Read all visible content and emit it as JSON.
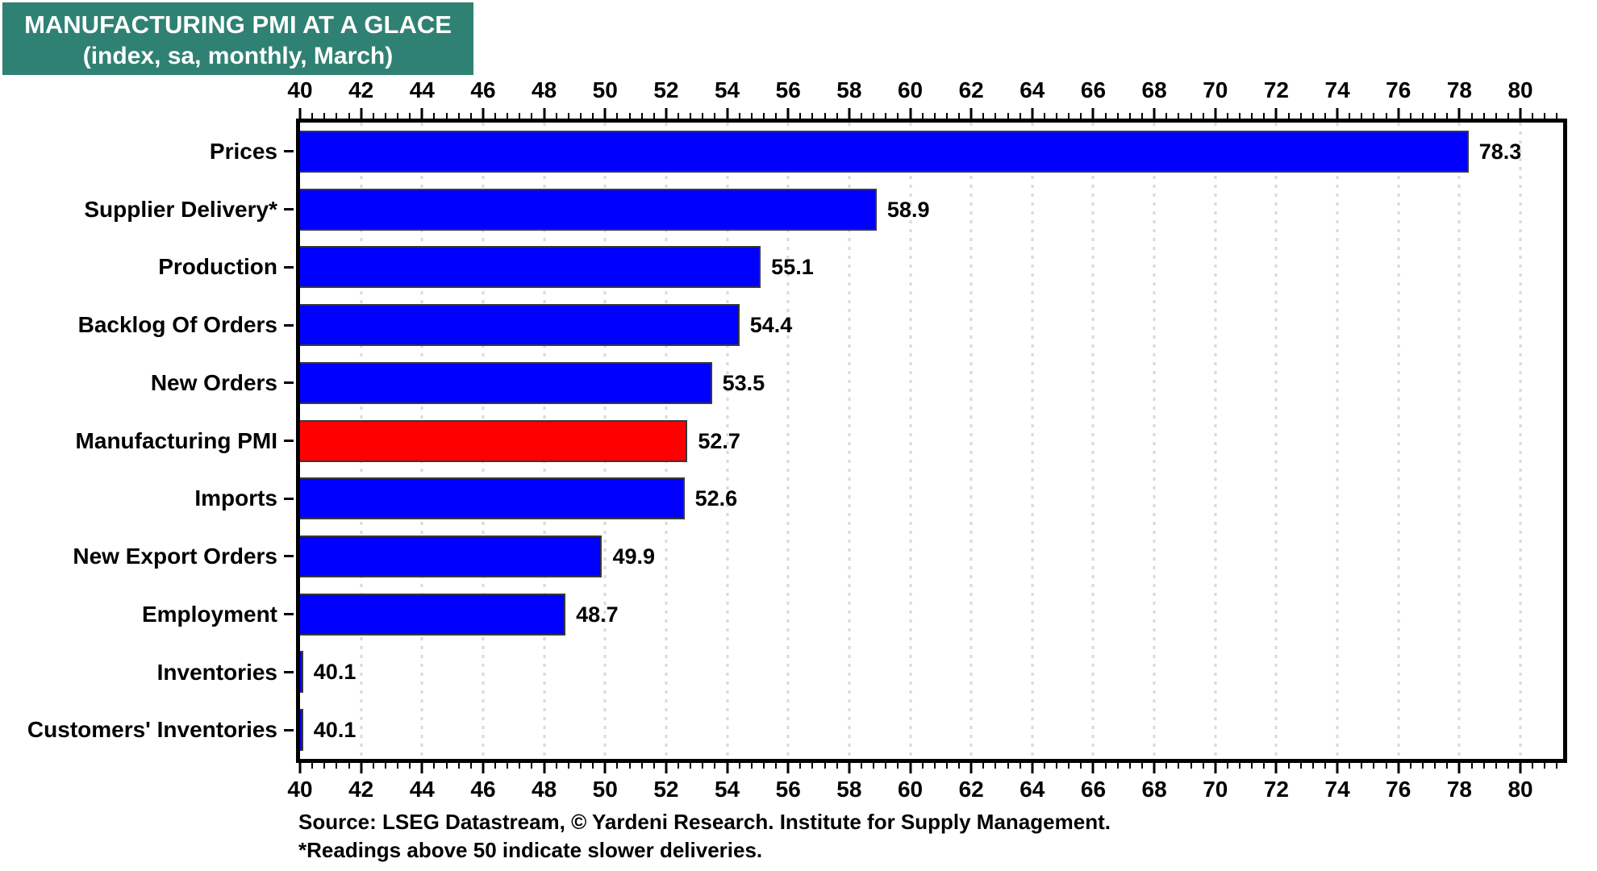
{
  "title": {
    "line1": "MANUFACTURING PMI AT A GLACE",
    "line2": "(index, sa, monthly, March)"
  },
  "chart_data": {
    "type": "bar",
    "orientation": "horizontal",
    "title": "MANUFACTURING PMI AT A GLACE",
    "subtitle": "(index, sa, monthly, March)",
    "categories": [
      "Prices",
      "Supplier Delivery*",
      "Production",
      "Backlog Of Orders",
      "New Orders",
      "Manufacturing PMI",
      "Imports",
      "New Export Orders",
      "Employment",
      "Inventories",
      "Customers' Inventories"
    ],
    "values": [
      78.3,
      58.9,
      55.1,
      54.4,
      53.5,
      52.7,
      52.6,
      49.9,
      48.7,
      40.1,
      40.1
    ],
    "highlight_category": "Manufacturing PMI",
    "bar_color": "#0000ff",
    "highlight_color": "#ff0000",
    "xlabel": "",
    "ylabel": "",
    "xlim": [
      40,
      81.4
    ],
    "xticks": [
      40,
      42,
      44,
      46,
      48,
      50,
      52,
      54,
      56,
      58,
      60,
      62,
      64,
      66,
      68,
      70,
      72,
      74,
      76,
      78,
      80
    ],
    "minor_tick_step": 0.4,
    "grid": "vertical-dotted",
    "value_labels": true,
    "axes": "ticks top and bottom, labels outside"
  },
  "footnotes": {
    "source": "Source: LSEG Datastream, © Yardeni Research. Institute for Supply Management.",
    "note": "*Readings above 50 indicate slower deliveries."
  },
  "colors": {
    "title_bg": "#2F8173",
    "title_text": "#ffffff",
    "bar_blue": "#0000ff",
    "bar_red": "#ff0000",
    "bar_border": "#383838",
    "grid": "#d9d9d9",
    "axis": "#000000",
    "background": "#ffffff"
  }
}
